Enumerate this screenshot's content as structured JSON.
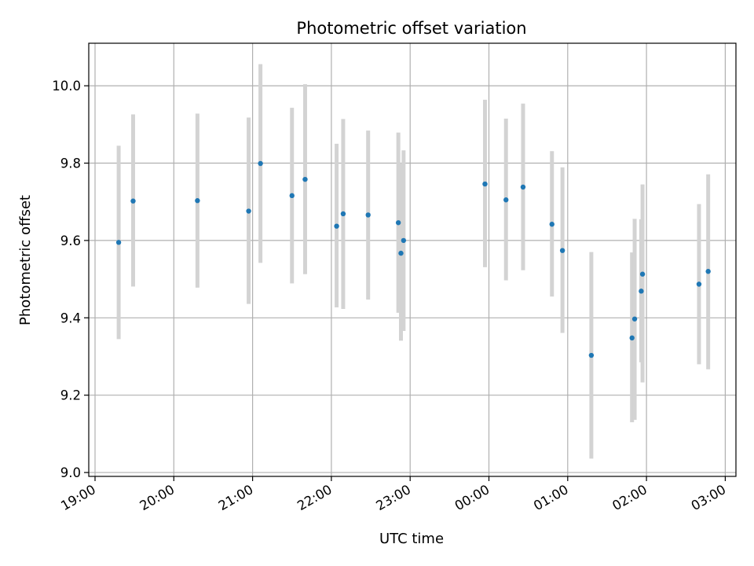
{
  "chart_data": {
    "type": "scatter",
    "title": "Photometric offset variation",
    "xlabel": "UTC time",
    "ylabel": "Photometric offset",
    "x_tick_labels": [
      "19:00",
      "20:00",
      "21:00",
      "22:00",
      "23:00",
      "00:00",
      "01:00",
      "02:00",
      "03:00"
    ],
    "y_tick_labels": [
      "9.0",
      "9.2",
      "9.4",
      "9.6",
      "9.8",
      "10.0"
    ],
    "y_ticks": [
      9.0,
      9.2,
      9.4,
      9.6,
      9.8,
      10.0
    ],
    "ylim": [
      8.99,
      10.11
    ],
    "xlim": [
      "19:00",
      "03:00"
    ],
    "grid": true,
    "marker_color": "#1f77b4",
    "errorbar_color": "#d3d3d3",
    "points": [
      {
        "time": "19:18",
        "y": 9.595,
        "lo": 9.345,
        "hi": 9.845
      },
      {
        "time": "19:29",
        "y": 9.702,
        "lo": 9.481,
        "hi": 9.926
      },
      {
        "time": "20:18",
        "y": 9.703,
        "lo": 9.478,
        "hi": 9.928
      },
      {
        "time": "20:57",
        "y": 9.676,
        "lo": 9.436,
        "hi": 9.918
      },
      {
        "time": "21:06",
        "y": 9.799,
        "lo": 9.542,
        "hi": 10.056
      },
      {
        "time": "21:30",
        "y": 9.716,
        "lo": 9.489,
        "hi": 9.943
      },
      {
        "time": "21:40",
        "y": 9.758,
        "lo": 9.513,
        "hi": 10.004
      },
      {
        "time": "22:04",
        "y": 9.637,
        "lo": 9.427,
        "hi": 9.85
      },
      {
        "time": "22:09",
        "y": 9.669,
        "lo": 9.423,
        "hi": 9.914
      },
      {
        "time": "22:28",
        "y": 9.666,
        "lo": 9.447,
        "hi": 9.884
      },
      {
        "time": "22:51",
        "y": 9.646,
        "lo": 9.413,
        "hi": 9.879
      },
      {
        "time": "22:53",
        "y": 9.567,
        "lo": 9.341,
        "hi": 9.8
      },
      {
        "time": "22:55",
        "y": 9.6,
        "lo": 9.366,
        "hi": 9.833
      },
      {
        "time": "23:57",
        "y": 9.746,
        "lo": 9.531,
        "hi": 9.964
      },
      {
        "time": "00:13",
        "y": 9.705,
        "lo": 9.497,
        "hi": 9.915
      },
      {
        "time": "00:26",
        "y": 9.738,
        "lo": 9.523,
        "hi": 9.954
      },
      {
        "time": "00:48",
        "y": 9.642,
        "lo": 9.455,
        "hi": 9.831
      },
      {
        "time": "00:56",
        "y": 9.574,
        "lo": 9.361,
        "hi": 9.789
      },
      {
        "time": "01:18",
        "y": 9.303,
        "lo": 9.036,
        "hi": 9.57
      },
      {
        "time": "01:49",
        "y": 9.348,
        "lo": 9.13,
        "hi": 9.569
      },
      {
        "time": "01:51",
        "y": 9.397,
        "lo": 9.136,
        "hi": 9.656
      },
      {
        "time": "01:56",
        "y": 9.469,
        "lo": 9.285,
        "hi": 9.655
      },
      {
        "time": "01:57",
        "y": 9.513,
        "lo": 9.233,
        "hi": 9.745
      },
      {
        "time": "02:40",
        "y": 9.487,
        "lo": 9.28,
        "hi": 9.694
      },
      {
        "time": "02:47",
        "y": 9.52,
        "lo": 9.267,
        "hi": 9.771
      }
    ]
  }
}
